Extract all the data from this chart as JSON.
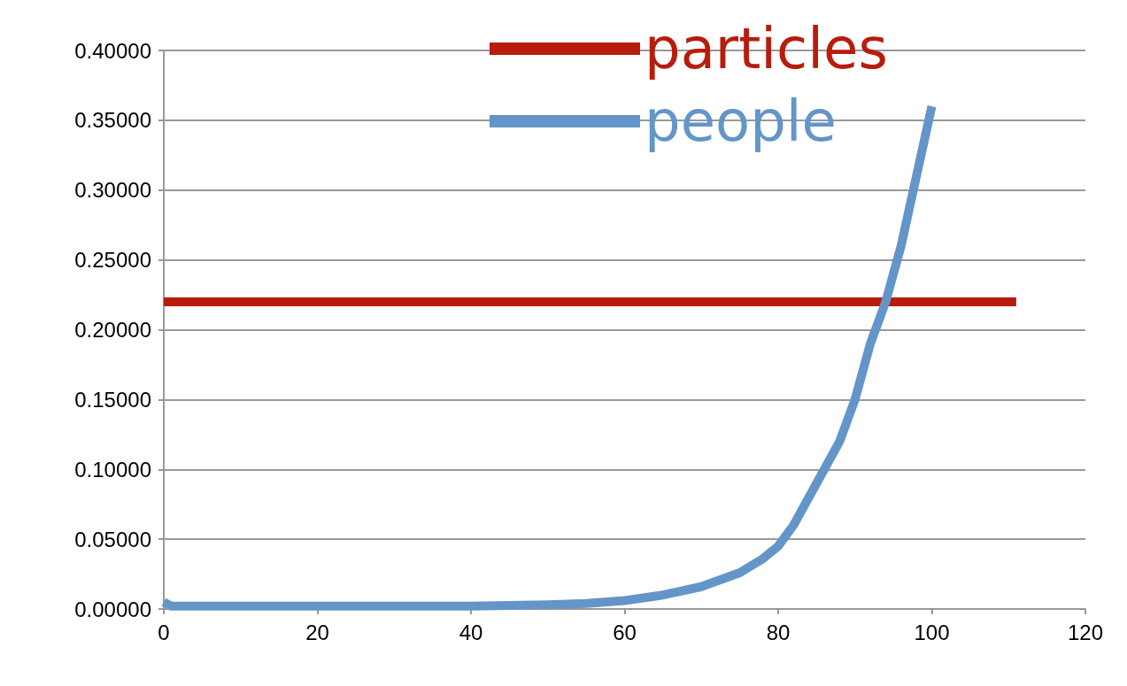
{
  "chart_data": {
    "type": "line",
    "legend": "top right",
    "grid": "y",
    "marker": "none",
    "line_style": "solid",
    "xlim": [
      0,
      120
    ],
    "xticks": [
      0,
      20,
      40,
      60,
      80,
      100,
      120
    ],
    "ylim": [
      0,
      0.4
    ],
    "yticks": [
      {
        "value": 0,
        "label": "0.00000"
      },
      {
        "value": 0.05,
        "label": "0.05000"
      },
      {
        "value": 0.1,
        "label": "0.10000"
      },
      {
        "value": 0.15,
        "label": "0.15000"
      },
      {
        "value": 0.2,
        "label": "0.20000"
      },
      {
        "value": 0.25,
        "label": "0.25000"
      },
      {
        "value": 0.3,
        "label": "0.30000"
      },
      {
        "value": 0.35,
        "label": "0.35000"
      },
      {
        "value": 0.4,
        "label": "0.40000"
      }
    ],
    "series": [
      {
        "name": "particles",
        "color": "#b81c0c",
        "x": [
          0,
          111
        ],
        "values": [
          0.22,
          0.22
        ]
      },
      {
        "name": "people",
        "color": "#6395c9",
        "x": [
          0,
          1,
          20,
          40,
          50,
          55,
          60,
          65,
          70,
          75,
          78,
          80,
          82,
          85,
          88,
          90,
          92,
          94,
          96,
          98,
          100
        ],
        "values": [
          0.005,
          0.002,
          0.002,
          0.002,
          0.003,
          0.004,
          0.006,
          0.01,
          0.016,
          0.026,
          0.036,
          0.045,
          0.06,
          0.09,
          0.12,
          0.15,
          0.19,
          0.22,
          0.26,
          0.31,
          0.36
        ]
      }
    ]
  }
}
